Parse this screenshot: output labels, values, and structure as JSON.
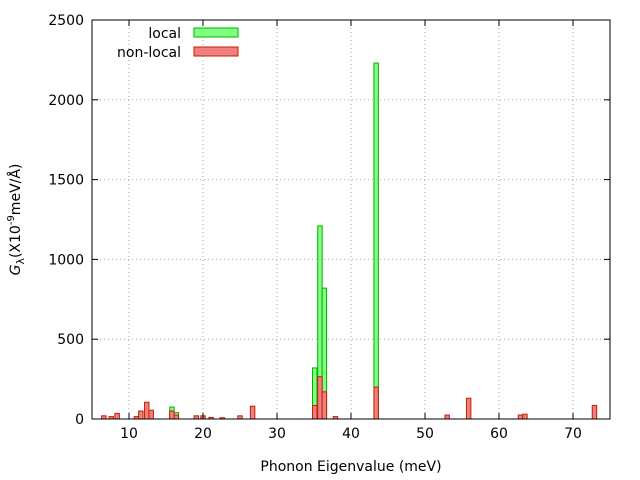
{
  "chart_data": {
    "type": "bar",
    "xlabel": "Phonon Eigenvalue (meV)",
    "ylabel": "G_λ (X10^-9 meV/Å)",
    "ylabel_parts": {
      "symbol": "G",
      "subscript": "λ",
      "open": "(X10",
      "exponent": "-9",
      "unit": "meV/Å)"
    },
    "xlim": [
      5,
      75
    ],
    "ylim": [
      0,
      2500
    ],
    "xticks": [
      10,
      20,
      30,
      40,
      50,
      60,
      70
    ],
    "yticks": [
      0,
      500,
      1000,
      1500,
      2000,
      2500
    ],
    "grid": true,
    "legend_position": "top-left",
    "bar_width": 0.6,
    "series": [
      {
        "name": "local",
        "color": "#80ff80",
        "edge": "#00b000",
        "points": [
          {
            "x": 15.8,
            "y": 75
          },
          {
            "x": 16.4,
            "y": 40
          },
          {
            "x": 35.1,
            "y": 320
          },
          {
            "x": 35.8,
            "y": 1210
          },
          {
            "x": 36.4,
            "y": 820
          },
          {
            "x": 43.4,
            "y": 2230
          }
        ]
      },
      {
        "name": "non-local",
        "color": "#f08080",
        "edge": "#c02000",
        "points": [
          {
            "x": 6.6,
            "y": 20
          },
          {
            "x": 7.6,
            "y": 15
          },
          {
            "x": 8.4,
            "y": 35
          },
          {
            "x": 11.0,
            "y": 15
          },
          {
            "x": 11.6,
            "y": 50
          },
          {
            "x": 12.4,
            "y": 105
          },
          {
            "x": 13.0,
            "y": 55
          },
          {
            "x": 15.8,
            "y": 50
          },
          {
            "x": 16.4,
            "y": 25
          },
          {
            "x": 19.1,
            "y": 20
          },
          {
            "x": 20.0,
            "y": 20
          },
          {
            "x": 21.1,
            "y": 10
          },
          {
            "x": 22.6,
            "y": 8
          },
          {
            "x": 25.0,
            "y": 20
          },
          {
            "x": 26.7,
            "y": 80
          },
          {
            "x": 35.1,
            "y": 85
          },
          {
            "x": 35.8,
            "y": 265
          },
          {
            "x": 36.4,
            "y": 170
          },
          {
            "x": 37.9,
            "y": 15
          },
          {
            "x": 43.4,
            "y": 200
          },
          {
            "x": 53.0,
            "y": 25
          },
          {
            "x": 55.9,
            "y": 130
          },
          {
            "x": 62.9,
            "y": 25
          },
          {
            "x": 63.5,
            "y": 30
          },
          {
            "x": 72.9,
            "y": 85
          }
        ]
      }
    ]
  }
}
